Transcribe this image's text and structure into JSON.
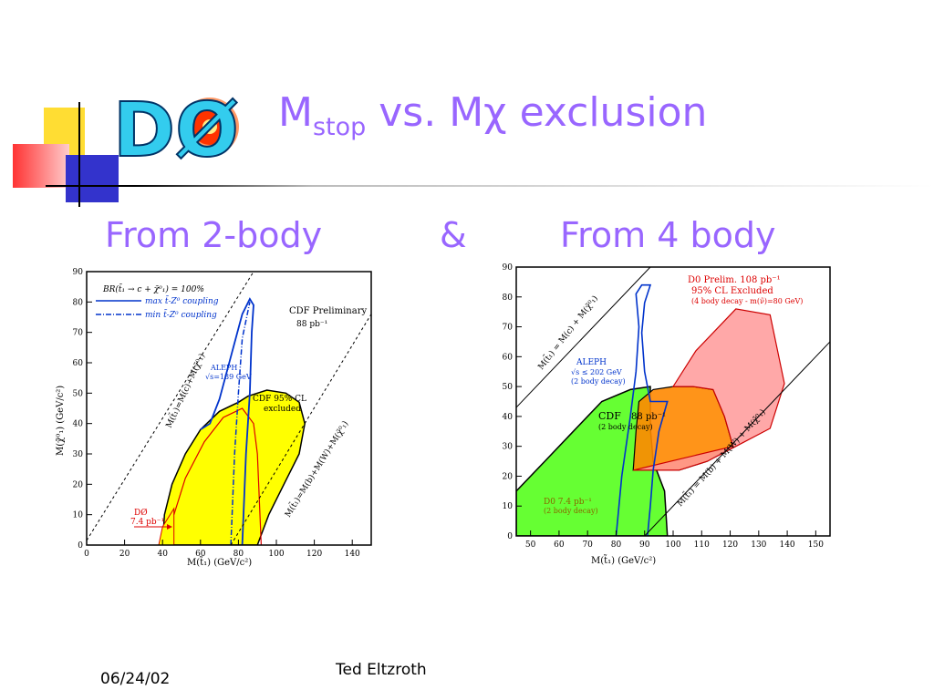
{
  "slide": {
    "title_main": "M",
    "title_sub": "stop",
    "title_mid": " vs. M",
    "title_chi": "χ",
    "title_end": " exclusion",
    "logo_text": "DØ",
    "subtitle_left": "From 2-body",
    "subtitle_amp": "&",
    "subtitle_right": "From 4 body",
    "footer_date": "06/24/02",
    "footer_author": "Ted Eltzroth"
  },
  "colors": {
    "accent": "#9966ff",
    "exclusion_yellow": "#ffff00",
    "exclusion_green": "#66ff33",
    "exclusion_orange": "#ff8800",
    "exclusion_pink": "#ff9999",
    "aleph_blue": "#0033cc",
    "d0_red": "#dd0000"
  },
  "chart_data": [
    {
      "type": "area",
      "xlim": [
        0,
        150
      ],
      "ylim": [
        0,
        90
      ],
      "xticks": [
        "0",
        "20",
        "40",
        "60",
        "80",
        "100",
        "120",
        "140"
      ],
      "yticks": [
        "0",
        "10",
        "20",
        "30",
        "40",
        "50",
        "60",
        "70",
        "80",
        "90"
      ],
      "xlabel": "M(t̃₁) (GeV/c²)",
      "ylabel": "M(χ̃⁰₁) (GeV/c²)",
      "legend_title": "BR(t̃₁ → c + χ̃⁰₁) = 100%",
      "legend_max": "max t̃-Z⁰ coupling",
      "legend_min": "min t̃-Z⁰ coupling",
      "cdf_label": "CDF Preliminary",
      "cdf_lumi": "88 pb⁻¹",
      "aleph_label": "ALEPH",
      "aleph_energy": "√s=189 GeV",
      "cdf_excl_1": "CDF 95% CL",
      "cdf_excl_2": "excluded",
      "d0_label": "DØ",
      "d0_lumi": "7.4 pb⁻¹",
      "line1_label": "M(t̃₁)=M(c)+M(χ̃⁰₁)",
      "line2_label": "M(t̃₁)=M(b)+M(W)+M(χ̃⁰₁)",
      "diag1": [
        [
          0,
          1.5
        ],
        [
          88,
          90
        ]
      ],
      "diag2": [
        [
          76,
          0
        ],
        [
          150,
          76
        ]
      ],
      "yellow_region": [
        [
          40,
          0
        ],
        [
          41,
          10
        ],
        [
          45,
          20
        ],
        [
          52,
          30
        ],
        [
          60,
          38
        ],
        [
          70,
          44
        ],
        [
          80,
          47
        ],
        [
          85,
          49
        ],
        [
          95,
          51
        ],
        [
          105,
          50
        ],
        [
          112,
          47
        ],
        [
          115,
          40
        ],
        [
          112,
          30
        ],
        [
          104,
          20
        ],
        [
          96,
          10
        ],
        [
          90,
          0
        ]
      ],
      "d0_region": [
        [
          38,
          0
        ],
        [
          40,
          6
        ],
        [
          44,
          10
        ],
        [
          46,
          12
        ],
        [
          46,
          0
        ]
      ],
      "aleph_max": [
        [
          82,
          0
        ],
        [
          84,
          30
        ],
        [
          86,
          50
        ],
        [
          87,
          70
        ],
        [
          88,
          79
        ],
        [
          86,
          81
        ],
        [
          82,
          76
        ],
        [
          76,
          62
        ],
        [
          70,
          48
        ],
        [
          65,
          40
        ],
        [
          60,
          38
        ]
      ],
      "aleph_min": [
        [
          76,
          0
        ],
        [
          78,
          30
        ],
        [
          80,
          50
        ],
        [
          82,
          68
        ],
        [
          86,
          80
        ]
      ],
      "cdf_red": [
        [
          46,
          10
        ],
        [
          52,
          22
        ],
        [
          62,
          34
        ],
        [
          72,
          42
        ],
        [
          82,
          45
        ],
        [
          88,
          40
        ],
        [
          90,
          30
        ],
        [
          91,
          15
        ],
        [
          92,
          0
        ]
      ]
    },
    {
      "type": "area",
      "xlim": [
        45,
        155
      ],
      "ylim": [
        0,
        90
      ],
      "xticks": [
        "50",
        "60",
        "70",
        "80",
        "90",
        "100",
        "110",
        "120",
        "130",
        "140",
        "150"
      ],
      "yticks": [
        "0",
        "10",
        "20",
        "30",
        "40",
        "50",
        "60",
        "70",
        "80",
        "90"
      ],
      "xlabel": "M(t̃₁) (GeV/c²)",
      "d0_prelim": "D0 Prelim. 108 pb⁻¹",
      "d0_excl": "95% CL Excluded",
      "d0_cond": "(4 body decay - m(ν̃)=80 GeV)",
      "aleph_label": "ALEPH",
      "aleph_energy": "√s ≤ 202 GeV",
      "aleph_cond": "(2 body decay)",
      "cdf_label": "CDF",
      "cdf_lumi": "88 pb⁻¹",
      "cdf_cond": "(2 body decay)",
      "d0_2b_label": "D0 7.4 pb⁻¹",
      "d0_2b_cond": "(2 body decay)",
      "line1_label": "M(t̃₁) = M(c) + M(χ̃⁰₁)",
      "line2_label": "M(t̃₁) = M(b) + M(W) + M(χ̃⁰₁)",
      "diag1": [
        [
          45,
          43
        ],
        [
          92,
          90
        ]
      ],
      "diag2": [
        [
          90,
          0
        ],
        [
          155,
          65
        ]
      ],
      "green_region": [
        [
          45,
          0
        ],
        [
          45,
          15
        ],
        [
          55,
          25
        ],
        [
          65,
          35
        ],
        [
          75,
          45
        ],
        [
          85,
          49
        ],
        [
          92,
          50
        ],
        [
          92,
          36
        ],
        [
          93,
          25
        ],
        [
          97,
          15
        ],
        [
          98,
          0
        ]
      ],
      "orange_region": [
        [
          86,
          22
        ],
        [
          87,
          35
        ],
        [
          88,
          45
        ],
        [
          93,
          49
        ],
        [
          100,
          50
        ],
        [
          107,
          50
        ],
        [
          114,
          49
        ],
        [
          118,
          40
        ],
        [
          121,
          30
        ],
        [
          112,
          25
        ],
        [
          102,
          22
        ]
      ],
      "pink_region": [
        [
          86,
          22
        ],
        [
          102,
          22
        ],
        [
          112,
          25
        ],
        [
          122,
          30
        ],
        [
          134,
          36
        ],
        [
          139,
          51
        ],
        [
          134,
          74
        ],
        [
          122,
          76
        ],
        [
          108,
          62
        ],
        [
          100,
          50
        ],
        [
          107,
          50
        ],
        [
          114,
          49
        ],
        [
          118,
          40
        ],
        [
          121,
          30
        ]
      ],
      "aleph_contour": [
        [
          80,
          0
        ],
        [
          82,
          20
        ],
        [
          85,
          40
        ],
        [
          87,
          55
        ],
        [
          88,
          70
        ],
        [
          87,
          81
        ],
        [
          89,
          84
        ],
        [
          92,
          84
        ],
        [
          90,
          78
        ],
        [
          89,
          68
        ],
        [
          90,
          55
        ],
        [
          92,
          45
        ],
        [
          98,
          45
        ],
        [
          95,
          35
        ],
        [
          93,
          22
        ],
        [
          92,
          10
        ],
        [
          91,
          0
        ]
      ]
    }
  ]
}
